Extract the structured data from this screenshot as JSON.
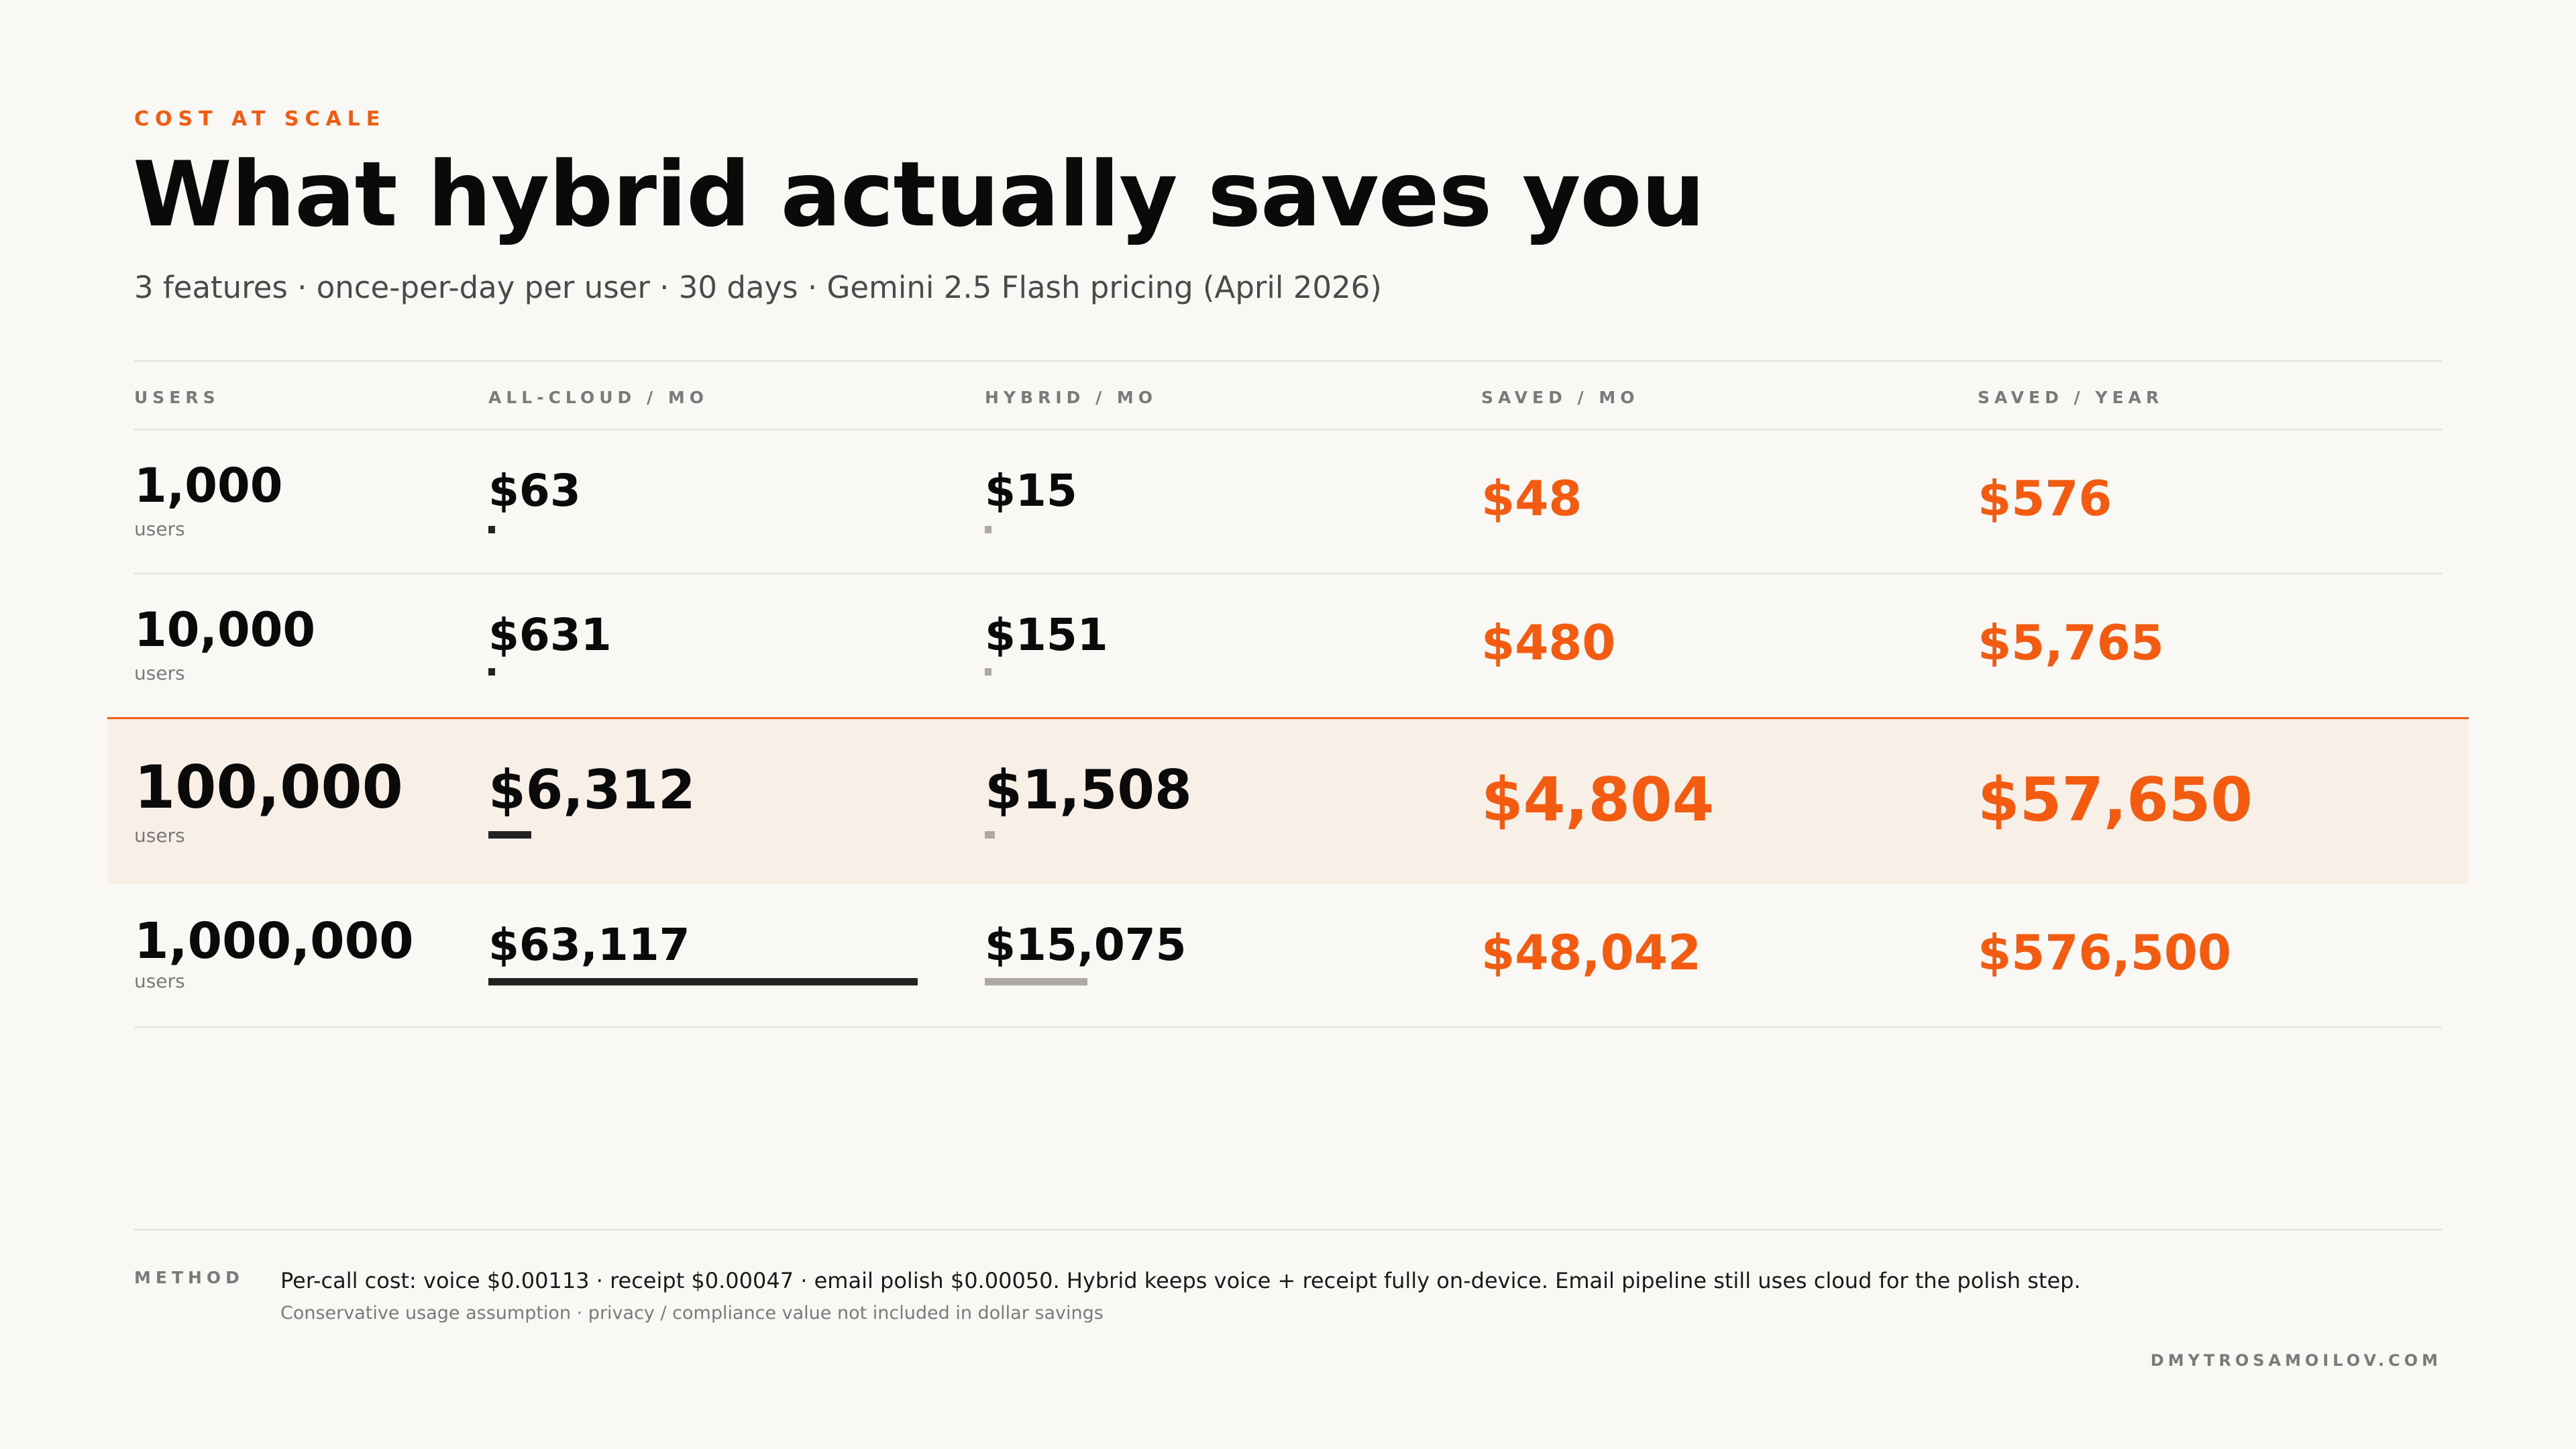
{
  "header": {
    "eyebrow": "COST AT SCALE",
    "title": "What hybrid actually saves you",
    "subtitle": "3 features · once-per-day per user · 30 days · Gemini 2.5 Flash pricing (April 2026)"
  },
  "colors": {
    "accent": "#f35b10",
    "cloud_bar": "#222222",
    "hybrid_bar": "#adaaa5",
    "highlight_bg": "#f8efe7"
  },
  "chart_data": {
    "type": "table",
    "columns": [
      "USERS",
      "ALL-CLOUD / MO",
      "HYBRID / MO",
      "SAVED / MO",
      "SAVED / YEAR"
    ],
    "unit_label": "users",
    "highlight_row": 2,
    "rows": [
      {
        "users": "1,000",
        "cloud": "$63",
        "hybrid": "$15",
        "saved_mo": "$48",
        "saved_yr": "$576",
        "cloud_value": 63,
        "hybrid_value": 15
      },
      {
        "users": "10,000",
        "cloud": "$631",
        "hybrid": "$151",
        "saved_mo": "$480",
        "saved_yr": "$5,765",
        "cloud_value": 631,
        "hybrid_value": 151
      },
      {
        "users": "100,000",
        "cloud": "$6,312",
        "hybrid": "$1,508",
        "saved_mo": "$4,804",
        "saved_yr": "$57,650",
        "cloud_value": 6312,
        "hybrid_value": 1508
      },
      {
        "users": "1,000,000",
        "cloud": "$63,117",
        "hybrid": "$15,075",
        "saved_mo": "$48,042",
        "saved_yr": "$576,500",
        "cloud_value": 63117,
        "hybrid_value": 15075
      }
    ]
  },
  "method": {
    "label": "METHOD",
    "text": "Per-call cost: voice $0.00113 · receipt $0.00047 · email polish $0.00050. Hybrid keeps voice + receipt fully on-device. Email pipeline still uses cloud for the polish step.",
    "note": "Conservative usage assumption · privacy / compliance value not included in dollar savings"
  },
  "footer": {
    "site": "DMYTROSAMOILOV.COM"
  }
}
